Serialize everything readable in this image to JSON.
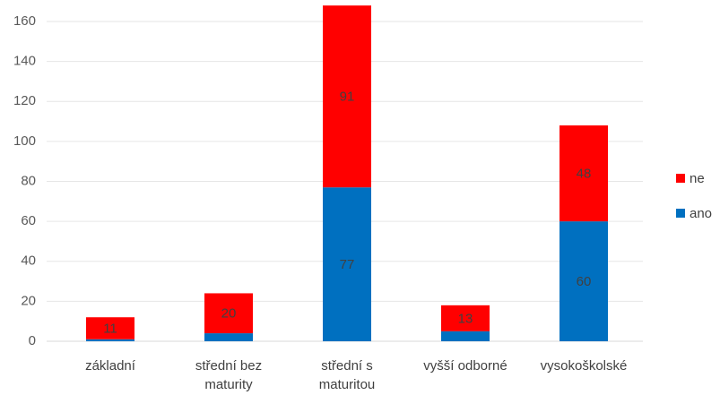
{
  "chart_data": {
    "type": "stacked_bar",
    "categories": [
      "základní",
      "střední bez maturity",
      "střední s maturitou",
      "vyšší odborné",
      "vysokoškolské"
    ],
    "series": [
      {
        "name": "ano",
        "color": "#0070c0",
        "values": [
          1,
          4,
          77,
          5,
          60
        ],
        "value_labels": [
          null,
          null,
          "77",
          null,
          "60"
        ]
      },
      {
        "name": "ne",
        "color": "#ff0000",
        "values": [
          11,
          20,
          91,
          13,
          48
        ],
        "value_labels": [
          "11",
          "20",
          "91",
          "13",
          "48"
        ]
      }
    ],
    "ylim": [
      0,
      160
    ],
    "yticks": [
      0,
      20,
      40,
      60,
      80,
      100,
      120,
      140,
      160
    ],
    "grid": true,
    "legend": "right"
  }
}
